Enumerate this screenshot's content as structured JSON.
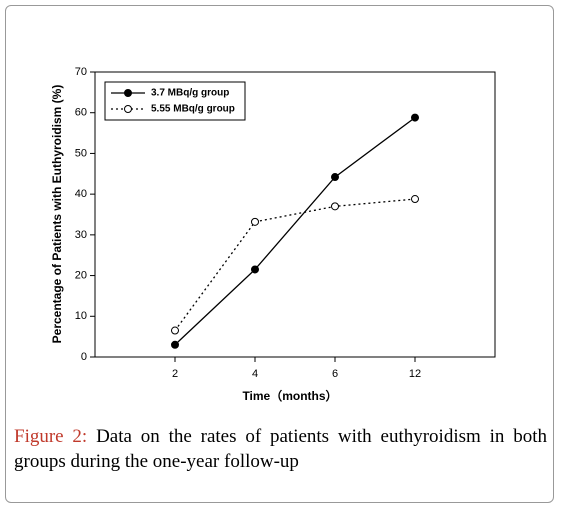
{
  "chart_data": {
    "type": "line",
    "x_label": "Time（months）",
    "y_label": "Percentage of Patients with Euthyroidism (%)",
    "categories": [
      "2",
      "4",
      "6",
      "12"
    ],
    "series": [
      {
        "name": "3.7 MBq/g group",
        "color": "#000000",
        "line_style": "solid",
        "marker_fill": "#000000",
        "values": [
          3,
          21.5,
          44.2,
          58.8
        ]
      },
      {
        "name": "5.55 MBq/g group",
        "color": "#000000",
        "line_style": "dotted",
        "marker_fill": "#ffffff",
        "values": [
          6.5,
          33.2,
          37,
          38.8
        ]
      }
    ],
    "ylim": [
      0,
      70
    ],
    "yticks": [
      0,
      10,
      20,
      30,
      40,
      50,
      60,
      70
    ],
    "grid": false,
    "legend": "upper left",
    "caption_label": "Figure 2:",
    "caption": "Data on the rates of patients with euthyroidism in both groups during the one-year follow-up"
  }
}
